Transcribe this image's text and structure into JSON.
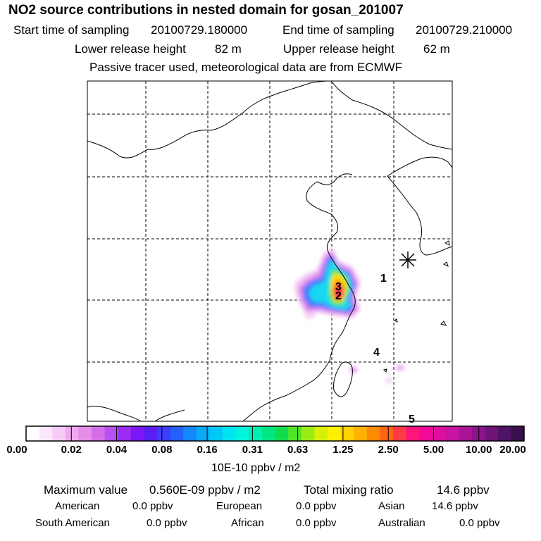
{
  "header": {
    "title": "NO2 source contributions in nested domain for gosan_201007",
    "start_label": "Start time of sampling",
    "start_value": "20100729.180000",
    "end_label": "End time of sampling",
    "end_value": "20100729.210000",
    "lower_label": "Lower release height",
    "lower_value": "82 m",
    "upper_label": "Upper release height",
    "upper_value": "62 m",
    "note": "Passive tracer used, meteorological data are from ECMWF"
  },
  "map": {
    "region_labels": [
      "1",
      "2",
      "3",
      "4",
      "5"
    ],
    "receptor_marker": "asterisk-icon"
  },
  "colorbar": {
    "ticks": [
      "0.00",
      "0.02",
      "0.04",
      "0.08",
      "0.16",
      "0.31",
      "0.63",
      "1.25",
      "2.50",
      "5.00",
      "10.00",
      "20.00"
    ],
    "colors": [
      "#ffffff",
      "#fbe7fb",
      "#f6cbf6",
      "#f0a8f0",
      "#e68ee9",
      "#d36ee6",
      "#b650f0",
      "#9a2cf5",
      "#7a18f5",
      "#5a1ef5",
      "#3b3ef8",
      "#2460fa",
      "#1488fa",
      "#0aaafa",
      "#00c8f5",
      "#00e6ee",
      "#00f5dc",
      "#00f0b4",
      "#00e682",
      "#12dc4e",
      "#4ee628",
      "#9aec14",
      "#d6f00a",
      "#fff000",
      "#ffd200",
      "#ffb000",
      "#ff8c00",
      "#ff6414",
      "#ff3c46",
      "#ff147a",
      "#f00a96",
      "#dc10a0",
      "#c814a0",
      "#aa1496",
      "#8c148c",
      "#6e1478",
      "#501464",
      "#3a0f4e"
    ],
    "units": "10E-10 ppbv / m2"
  },
  "summary": {
    "max_label": "Maximum value",
    "max_value": "0.560E-09 ppbv / m2",
    "total_label": "Total mixing ratio",
    "total_value": "14.6 ppbv",
    "regions": [
      {
        "name": "American",
        "value": "0.0 ppbv"
      },
      {
        "name": "European",
        "value": "0.0 ppbv"
      },
      {
        "name": "Asian",
        "value": "14.6 ppbv"
      },
      {
        "name": "South American",
        "value": "0.0 ppbv"
      },
      {
        "name": "African",
        "value": "0.0 ppbv"
      },
      {
        "name": "Australian",
        "value": "0.0 ppbv"
      }
    ]
  }
}
